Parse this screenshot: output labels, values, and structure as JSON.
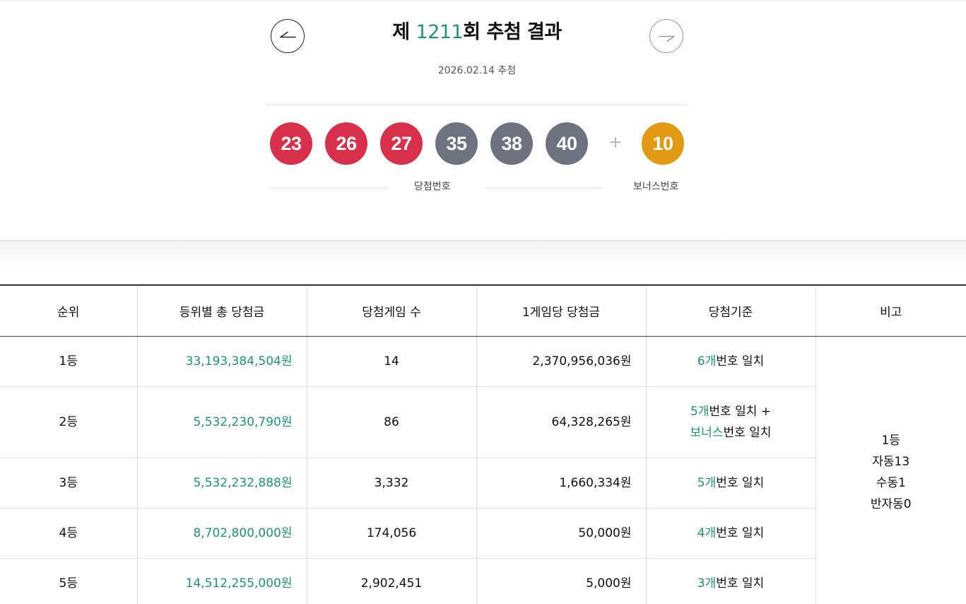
{
  "header": {
    "title_prefix": "제 ",
    "round": "1211",
    "title_suffix": "회 추첨 결과",
    "draw_date": "2026.02.14 추첨",
    "prev_icon": "arrow-left-icon",
    "next_icon": "arrow-right-icon"
  },
  "winning_numbers": [
    {
      "number": "23",
      "color": "#d8304a"
    },
    {
      "number": "26",
      "color": "#d8304a"
    },
    {
      "number": "27",
      "color": "#d8304a"
    },
    {
      "number": "35",
      "color": "#6e727f"
    },
    {
      "number": "38",
      "color": "#6e727f"
    },
    {
      "number": "40",
      "color": "#6e727f"
    }
  ],
  "plus_sign": "+",
  "bonus": {
    "number": "10",
    "color": "#e19a12"
  },
  "labels": {
    "winning": "당첨번호",
    "bonus": "보너스번호"
  },
  "colors": {
    "accent": "#1e9577",
    "red_ball": "#d8304a",
    "gray_ball": "#6e727f",
    "bonus_ball": "#e19a12"
  },
  "table": {
    "headers": [
      "순위",
      "등위별 총 당첨금",
      "당첨게임 수",
      "1게임당 당첨금",
      "당첨기준",
      "비고"
    ],
    "rows": [
      {
        "rank": "1등",
        "total": "33,193,384,504원",
        "winners": "14",
        "per_game": "2,370,956,036원",
        "crit": [
          {
            "g": "6개",
            "t": "번호 일치"
          }
        ]
      },
      {
        "rank": "2등",
        "total": "5,532,230,790원",
        "winners": "86",
        "per_game": "64,328,265원",
        "crit": [
          {
            "g": "5개",
            "t": "번호 일치 +"
          },
          {
            "g": "보너스",
            "t": "번호 일치"
          }
        ]
      },
      {
        "rank": "3등",
        "total": "5,532,232,888원",
        "winners": "3,332",
        "per_game": "1,660,334원",
        "crit": [
          {
            "g": "5개",
            "t": "번호 일치"
          }
        ]
      },
      {
        "rank": "4등",
        "total": "8,702,800,000원",
        "winners": "174,056",
        "per_game": "50,000원",
        "crit": [
          {
            "g": "4개",
            "t": "번호 일치"
          }
        ]
      },
      {
        "rank": "5등",
        "total": "14,512,255,000원",
        "winners": "2,902,451",
        "per_game": "5,000원",
        "crit": [
          {
            "g": "3개",
            "t": "번호 일치"
          }
        ]
      }
    ],
    "note_lines": [
      "1등",
      "자동13",
      "수동1",
      "반자동0"
    ]
  }
}
